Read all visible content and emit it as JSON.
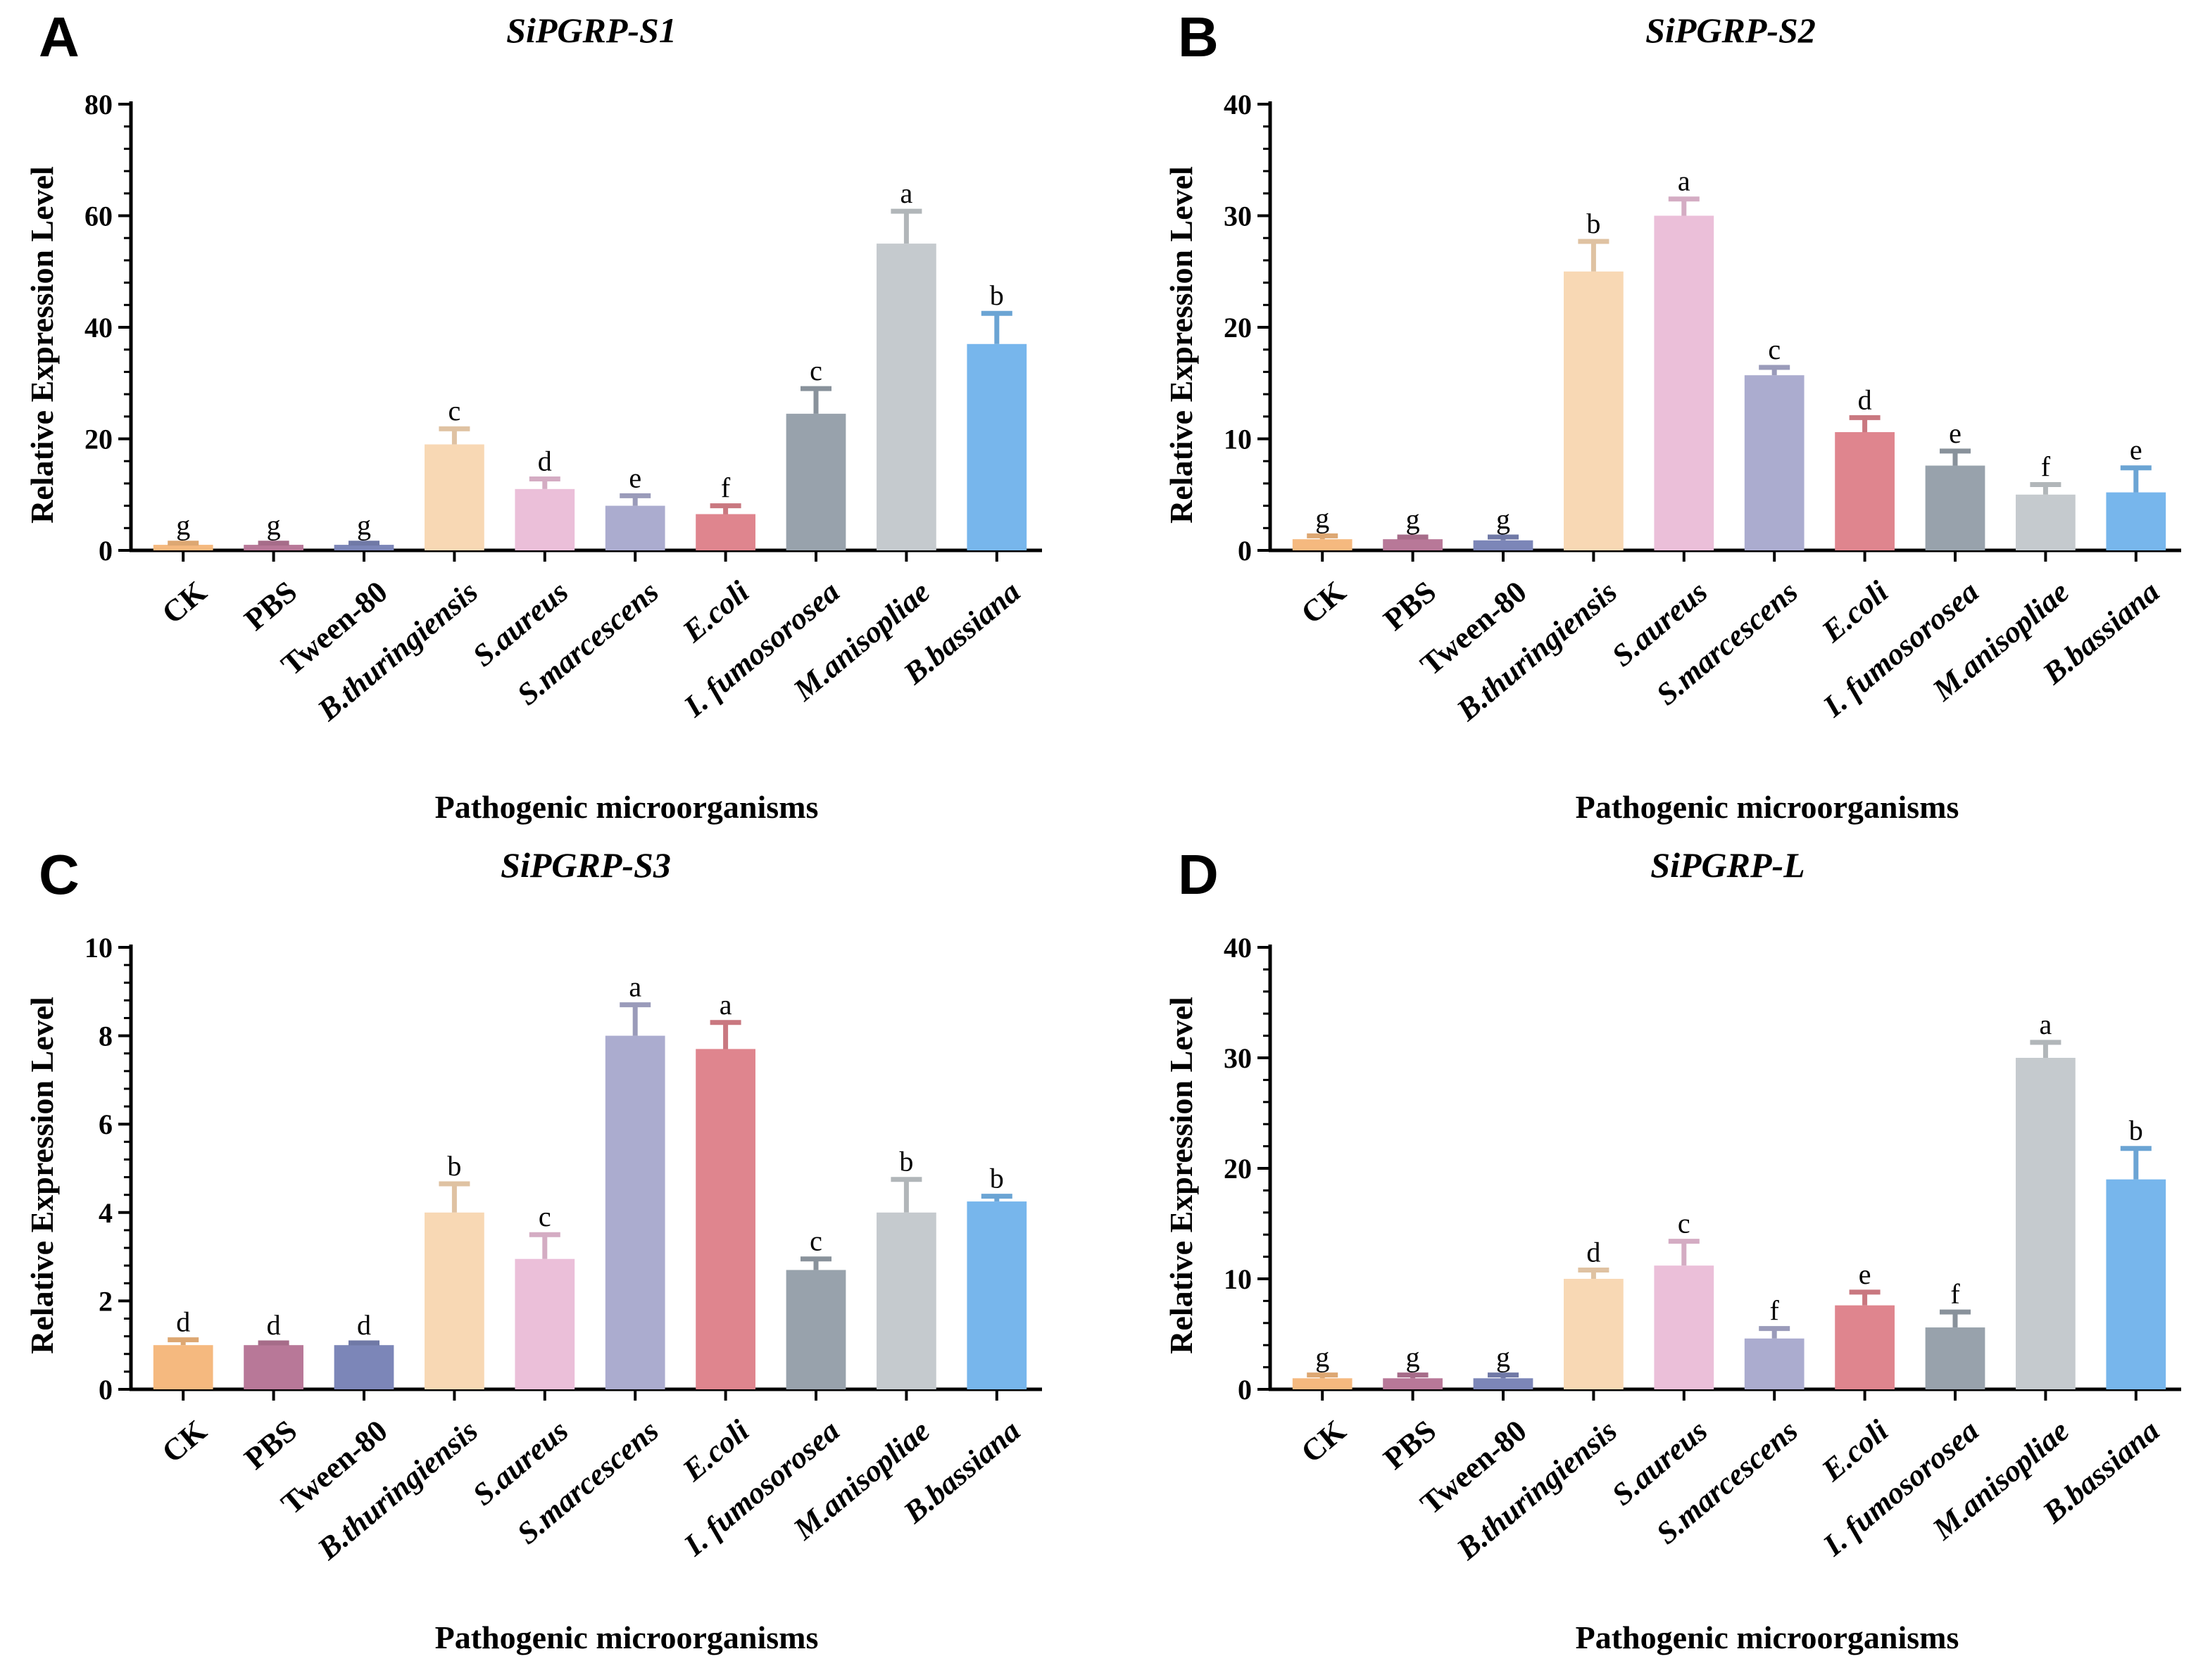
{
  "chart_data": [
    {
      "panel": "A",
      "type": "bar",
      "title": "SiPGRP-S1",
      "xlabel": "Pathogenic microorganisms",
      "ylabel": "Relative Expression Level",
      "ylim": [
        0,
        80
      ],
      "yticks": [
        0,
        20,
        40,
        60,
        80
      ],
      "categories": [
        "CK",
        "PBS",
        "Tween-80",
        "B.thuringiensis",
        "S.aureus",
        "S.marcescens",
        "E.coli",
        "I. fumosorosea",
        "M.anisopliae",
        "B.bassiana"
      ],
      "italic_categories": [
        false,
        false,
        false,
        true,
        true,
        true,
        true,
        true,
        true,
        true
      ],
      "values": [
        1,
        1,
        1,
        19,
        11,
        8,
        6.5,
        24.5,
        55,
        37
      ],
      "errors": [
        0.3,
        0.3,
        0.3,
        2.8,
        1.8,
        1.8,
        1.5,
        4.5,
        5.8,
        5.5
      ],
      "letters": [
        "g",
        "g",
        "g",
        "c",
        "d",
        "e",
        "f",
        "c",
        "a",
        "b"
      ],
      "colors": [
        "#F5B97F",
        "#B87898",
        "#7C86B8",
        "#F8D8B4",
        "#EBBFD9",
        "#ABACCF",
        "#DF858E",
        "#98A2AC",
        "#C5CACE",
        "#77B6EC"
      ]
    },
    {
      "panel": "B",
      "type": "bar",
      "title": "SiPGRP-S2",
      "xlabel": "Pathogenic microorganisms",
      "ylabel": "Relative Expression Level",
      "ylim": [
        0,
        40
      ],
      "yticks": [
        0,
        10,
        20,
        30,
        40
      ],
      "categories": [
        "CK",
        "PBS",
        "Tween-80",
        "B.thuringiensis",
        "S.aureus",
        "S.marcescens",
        "E.coli",
        "I. fumosorosea",
        "M.anisopliae",
        "B.bassiana"
      ],
      "italic_categories": [
        false,
        false,
        false,
        true,
        true,
        true,
        true,
        true,
        true,
        true
      ],
      "values": [
        1,
        1,
        0.9,
        25,
        30,
        15.7,
        10.6,
        7.6,
        5,
        5.2
      ],
      "errors": [
        0.3,
        0.2,
        0.3,
        2.7,
        1.5,
        0.7,
        1.3,
        1.3,
        0.9,
        2.2
      ],
      "letters": [
        "g",
        "g",
        "g",
        "b",
        "a",
        "c",
        "d",
        "e",
        "f",
        "e"
      ],
      "colors": [
        "#F5B97F",
        "#B87898",
        "#7C86B8",
        "#F8D8B4",
        "#EBBFD9",
        "#ABACCF",
        "#DF858E",
        "#98A2AC",
        "#C5CACE",
        "#77B6EC"
      ]
    },
    {
      "panel": "C",
      "type": "bar",
      "title": "SiPGRP-S3",
      "xlabel": "Pathogenic microorganisms",
      "ylabel": "Relative Expression Level",
      "ylim": [
        0,
        10
      ],
      "yticks": [
        0,
        2,
        4,
        6,
        8,
        10
      ],
      "categories": [
        "CK",
        "PBS",
        "Tween-80",
        "B.thuringiensis",
        "S.aureus",
        "S.marcescens",
        "E.coli",
        "I. fumosorosea",
        "M.anisopliae",
        "B.bassiana"
      ],
      "italic_categories": [
        false,
        false,
        false,
        true,
        true,
        true,
        true,
        true,
        true,
        true
      ],
      "values": [
        1,
        1,
        1,
        4,
        2.95,
        8,
        7.7,
        2.7,
        4,
        4.25
      ],
      "errors": [
        0.12,
        0.05,
        0.05,
        0.65,
        0.55,
        0.7,
        0.6,
        0.25,
        0.75,
        0.12
      ],
      "letters": [
        "d",
        "d",
        "d",
        "b",
        "c",
        "a",
        "a",
        "c",
        "b",
        "b"
      ],
      "colors": [
        "#F5B97F",
        "#B87898",
        "#7C86B8",
        "#F8D8B4",
        "#EBBFD9",
        "#ABACCF",
        "#DF858E",
        "#98A2AC",
        "#C5CACE",
        "#77B6EC"
      ]
    },
    {
      "panel": "D",
      "type": "bar",
      "title": "SiPGRP-L",
      "xlabel": "Pathogenic microorganisms",
      "ylabel": "Relative Expression Level",
      "ylim": [
        0,
        40
      ],
      "yticks": [
        0,
        10,
        20,
        30,
        40
      ],
      "categories": [
        "CK",
        "PBS",
        "Tween-80",
        "B.thuringiensis",
        "S.aureus",
        "S.marcescens",
        "E.coli",
        "I. fumosorosea",
        "M.anisopliae",
        "B.bassiana"
      ],
      "italic_categories": [
        false,
        false,
        false,
        true,
        true,
        true,
        true,
        true,
        true,
        true
      ],
      "values": [
        1,
        1,
        1,
        10,
        11.2,
        4.6,
        7.6,
        5.6,
        30,
        19
      ],
      "errors": [
        0.3,
        0.3,
        0.3,
        0.8,
        2.2,
        0.9,
        1.2,
        1.4,
        1.4,
        2.8
      ],
      "letters": [
        "g",
        "g",
        "g",
        "d",
        "c",
        "f",
        "e",
        "f",
        "a",
        "b"
      ],
      "colors": [
        "#F5B97F",
        "#B87898",
        "#7C86B8",
        "#F8D8B4",
        "#EBBFD9",
        "#ABACCF",
        "#DF858E",
        "#98A2AC",
        "#C5CACE",
        "#77B6EC"
      ]
    }
  ]
}
